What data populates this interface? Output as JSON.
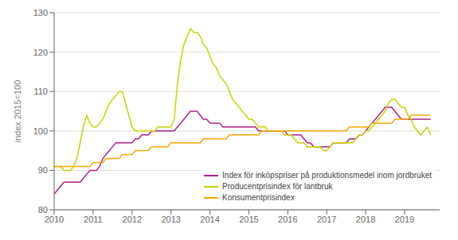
{
  "chart_data": {
    "type": "line",
    "ylabel": "index 2015=100",
    "xlim": [
      2010,
      2019.9
    ],
    "xticks": [
      2010,
      2011,
      2012,
      2013,
      2014,
      2015,
      2016,
      2017,
      2018,
      2019
    ],
    "ylim": [
      80,
      130
    ],
    "yticks": [
      80,
      90,
      100,
      110,
      120,
      130
    ],
    "grid": "y",
    "legend": "lower right",
    "x": [
      2010,
      2010.0833333333333,
      2010.1666666666667,
      2010.25,
      2010.3333333333333,
      2010.4166666666667,
      2010.5,
      2010.5833333333333,
      2010.6666666666667,
      2010.75,
      2010.8333333333333,
      2010.9166666666667,
      2011,
      2011.0833333333333,
      2011.1666666666667,
      2011.25,
      2011.3333333333333,
      2011.4166666666667,
      2011.5,
      2011.5833333333333,
      2011.6666666666667,
      2011.75,
      2011.8333333333333,
      2011.9166666666667,
      2012,
      2012.0833333333333,
      2012.1666666666667,
      2012.25,
      2012.3333333333333,
      2012.4166666666667,
      2012.5,
      2012.5833333333333,
      2012.6666666666667,
      2012.75,
      2012.8333333333333,
      2012.9166666666667,
      2013,
      2013.0833333333333,
      2013.1666666666667,
      2013.25,
      2013.3333333333333,
      2013.4166666666667,
      2013.5,
      2013.5833333333333,
      2013.6666666666667,
      2013.75,
      2013.8333333333333,
      2013.9166666666667,
      2014,
      2014.0833333333333,
      2014.1666666666667,
      2014.25,
      2014.3333333333333,
      2014.4166666666667,
      2014.5,
      2014.5833333333333,
      2014.6666666666667,
      2014.75,
      2014.8333333333333,
      2014.9166666666667,
      2015,
      2015.0833333333333,
      2015.1666666666667,
      2015.25,
      2015.3333333333333,
      2015.4166666666667,
      2015.5,
      2015.5833333333333,
      2015.6666666666667,
      2015.75,
      2015.8333333333333,
      2015.9166666666667,
      2016,
      2016.0833333333333,
      2016.1666666666667,
      2016.25,
      2016.3333333333333,
      2016.4166666666667,
      2016.5,
      2016.5833333333333,
      2016.6666666666667,
      2016.75,
      2016.8333333333333,
      2016.9166666666667,
      2017,
      2017.0833333333333,
      2017.1666666666667,
      2017.25,
      2017.3333333333333,
      2017.4166666666667,
      2017.5,
      2017.5833333333333,
      2017.6666666666667,
      2017.75,
      2017.8333333333333,
      2017.9166666666667,
      2018,
      2018.0833333333333,
      2018.1666666666667,
      2018.25,
      2018.3333333333333,
      2018.4166666666667,
      2018.5,
      2018.5833333333333,
      2018.6666666666667,
      2018.75,
      2018.8333333333333,
      2018.9166666666667,
      2019,
      2019.0833333333333,
      2019.1666666666667,
      2019.25,
      2019.3333333333333,
      2019.4166666666667,
      2019.5,
      2019.5833333333333,
      2019.6666666666667
    ],
    "series": [
      {
        "name": "Index för inköpspriser på produktionsmedel inom jordbruket",
        "color": "#b0208c",
        "values": [
          84,
          85,
          86,
          87,
          87,
          87,
          87,
          87,
          87,
          88,
          89,
          90,
          90,
          90,
          91,
          93,
          94,
          95,
          96,
          97,
          97,
          97,
          97,
          97,
          97,
          98,
          98,
          99,
          99,
          99,
          100,
          100,
          100,
          100,
          100,
          100,
          100,
          100,
          101,
          102,
          103,
          104,
          105,
          105,
          105,
          104,
          103,
          103,
          102,
          102,
          102,
          102,
          101,
          101,
          101,
          101,
          101,
          101,
          101,
          101,
          101,
          101,
          101,
          100,
          100,
          100,
          100,
          100,
          100,
          100,
          100,
          100,
          99,
          99,
          99,
          99,
          99,
          98,
          97,
          97,
          96,
          96,
          96,
          96,
          96,
          96,
          97,
          97,
          97,
          97,
          97,
          98,
          98,
          98,
          99,
          99,
          100,
          101,
          102,
          103,
          104,
          105,
          106,
          106,
          106,
          105,
          104,
          103,
          103,
          103,
          103,
          103,
          103,
          103,
          103,
          103,
          103
        ]
      },
      {
        "name": "Producentprisindex för lantbruk",
        "color": "#c8d400",
        "values": [
          91,
          91,
          91,
          90,
          90,
          90,
          91,
          93,
          97,
          101,
          104,
          102,
          101,
          101,
          102,
          103,
          105,
          107,
          108,
          109,
          110,
          110,
          107,
          104,
          101,
          100,
          100,
          100,
          100,
          100,
          100,
          100,
          101,
          101,
          101,
          101,
          101,
          103,
          112,
          118,
          122,
          124,
          126,
          125,
          125,
          124,
          122,
          121,
          119,
          117,
          116,
          114,
          113,
          112,
          110,
          108,
          107,
          106,
          105,
          104,
          103,
          103,
          102,
          101,
          101,
          101,
          100,
          100,
          100,
          100,
          100,
          99,
          99,
          99,
          98,
          97,
          97,
          97,
          96,
          96,
          96,
          96,
          96,
          95,
          95,
          96,
          97,
          97,
          97,
          97,
          97,
          97,
          97,
          98,
          99,
          99,
          100,
          100,
          101,
          102,
          103,
          104,
          105,
          107,
          108,
          108,
          107,
          106,
          106,
          104,
          103,
          101,
          100,
          99,
          100,
          101,
          99
        ]
      },
      {
        "name": "Konsumentprisindex",
        "color": "#f5a800",
        "values": [
          91,
          91,
          91,
          91,
          91,
          91,
          91,
          91,
          91,
          91,
          91,
          91,
          92,
          92,
          92,
          92,
          93,
          93,
          93,
          93,
          93,
          94,
          94,
          94,
          94,
          95,
          95,
          95,
          95,
          95,
          96,
          96,
          96,
          96,
          96,
          96,
          97,
          97,
          97,
          97,
          97,
          97,
          97,
          97,
          97,
          97,
          98,
          98,
          98,
          98,
          98,
          98,
          98,
          98,
          99,
          99,
          99,
          99,
          99,
          99,
          99,
          99,
          99,
          99,
          100,
          100,
          100,
          100,
          100,
          100,
          100,
          100,
          100,
          100,
          100,
          100,
          100,
          100,
          100,
          100,
          100,
          100,
          100,
          100,
          100,
          100,
          100,
          100,
          100,
          100,
          100,
          101,
          101,
          101,
          101,
          101,
          101,
          101,
          102,
          102,
          102,
          102,
          102,
          102,
          102,
          103,
          103,
          103,
          103,
          103,
          104,
          104,
          104,
          104,
          104,
          104,
          104
        ]
      }
    ]
  }
}
